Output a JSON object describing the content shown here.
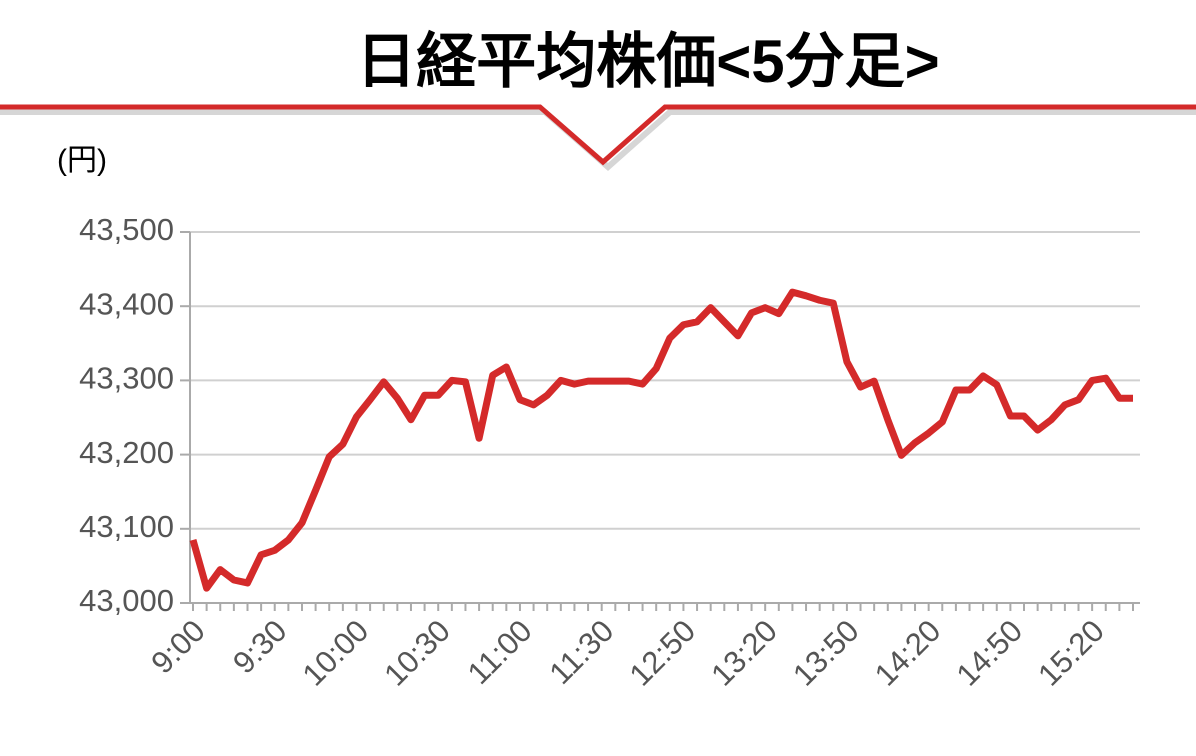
{
  "chart_data": {
    "type": "line",
    "title": "日経平均株価<5分足>",
    "y_label": "(円)",
    "categories": [
      "9:00",
      null,
      null,
      null,
      null,
      null,
      "9:30",
      null,
      null,
      null,
      null,
      null,
      "10:00",
      null,
      null,
      null,
      null,
      null,
      "10:30",
      null,
      null,
      null,
      null,
      null,
      "11:00",
      null,
      null,
      null,
      null,
      null,
      "11:30",
      null,
      null,
      null,
      null,
      null,
      "12:50",
      null,
      null,
      null,
      null,
      null,
      "13:20",
      null,
      null,
      null,
      null,
      null,
      "13:50",
      null,
      null,
      null,
      null,
      null,
      "14:20",
      null,
      null,
      null,
      null,
      null,
      "14:50",
      null,
      null,
      null,
      null,
      null,
      "15:20",
      null,
      null,
      null
    ],
    "series": [
      {
        "color": "#d42a2a",
        "values": [
          43085,
          43020,
          43045,
          43031,
          43027,
          43065,
          43071,
          43085,
          43108,
          43152,
          43197,
          43214,
          43251,
          43274,
          43298,
          43276,
          43247,
          43280,
          43280,
          43300,
          43298,
          43222,
          43307,
          43318,
          43274,
          43267,
          43280,
          43300,
          43295,
          43299,
          43299,
          43299,
          43299,
          43295,
          43316,
          43357,
          43375,
          43379,
          43398,
          43379,
          43360,
          43391,
          43398,
          43390,
          43419,
          43414,
          43408,
          43404,
          43325,
          43291,
          43299,
          43247,
          43199,
          43216,
          43229,
          43244,
          43287,
          43287,
          43306,
          43294,
          43252,
          43252,
          43233,
          43247,
          43267,
          43274,
          43300,
          43303,
          43276,
          43276
        ]
      }
    ],
    "ylim": [
      43000,
      43500
    ],
    "yticks": [
      {
        "value": 43000,
        "label": "43,000"
      },
      {
        "value": 43100,
        "label": "43,100"
      },
      {
        "value": 43200,
        "label": "43,200"
      },
      {
        "value": 43300,
        "label": "43,300"
      },
      {
        "value": 43400,
        "label": "43,400"
      },
      {
        "value": 43500,
        "label": "43,500"
      }
    ],
    "grid": true
  }
}
